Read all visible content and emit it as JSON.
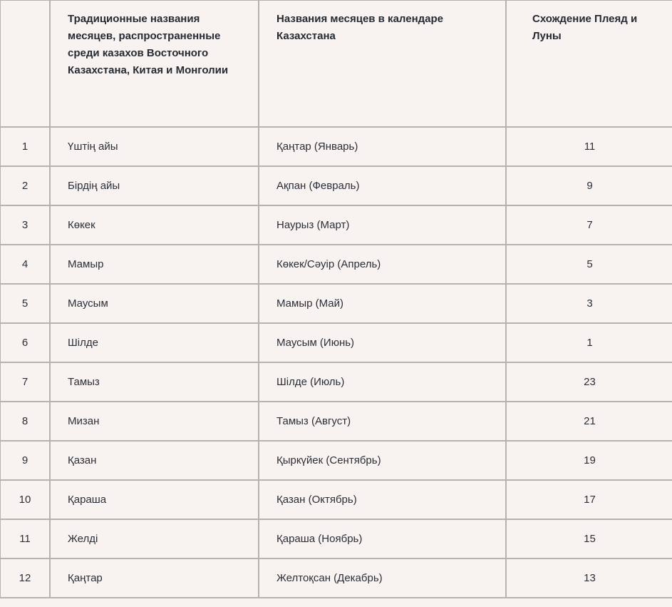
{
  "table": {
    "headers": [
      "",
      "Традиционные названия месяцев, распространенные среди казахов Восточного Казахстана, Китая и Монголии",
      "Названия месяцев в календаре Казахстана",
      "Схождение Плеяд и Луны"
    ],
    "rows": [
      {
        "n": "1",
        "traditional": "Үштің айы",
        "calendar": "Қаңтар (Январь)",
        "convergence": "11"
      },
      {
        "n": "2",
        "traditional": "Бірдің айы",
        "calendar": "Ақпан (Февраль)",
        "convergence": "9"
      },
      {
        "n": "3",
        "traditional": "Көкек",
        "calendar": "Наурыз (Март)",
        "convergence": "7"
      },
      {
        "n": "4",
        "traditional": "Мамыр",
        "calendar": "Көкек/Сәуір (Апрель)",
        "convergence": "5"
      },
      {
        "n": "5",
        "traditional": "Маусым",
        "calendar": "Мамыр (Май)",
        "convergence": "3"
      },
      {
        "n": "6",
        "traditional": "Шілде",
        "calendar": "Маусым (Июнь)",
        "convergence": "1"
      },
      {
        "n": "7",
        "traditional": "Тамыз",
        "calendar": "Шілде (Июль)",
        "convergence": "23"
      },
      {
        "n": "8",
        "traditional": "Мизан",
        "calendar": "Тамыз (Август)",
        "convergence": "21"
      },
      {
        "n": "9",
        "traditional": "Қазан",
        "calendar": "Қыркүйек (Сентябрь)",
        "convergence": "19"
      },
      {
        "n": "10",
        "traditional": "Қараша",
        "calendar": "Қазан (Октябрь)",
        "convergence": "17"
      },
      {
        "n": "11",
        "traditional": "Желді",
        "calendar": "Қараша (Ноябрь)",
        "convergence": "15"
      },
      {
        "n": "12",
        "traditional": "Қаңтар",
        "calendar": "Желтоқсан (Декабрь)",
        "convergence": "13"
      }
    ]
  }
}
